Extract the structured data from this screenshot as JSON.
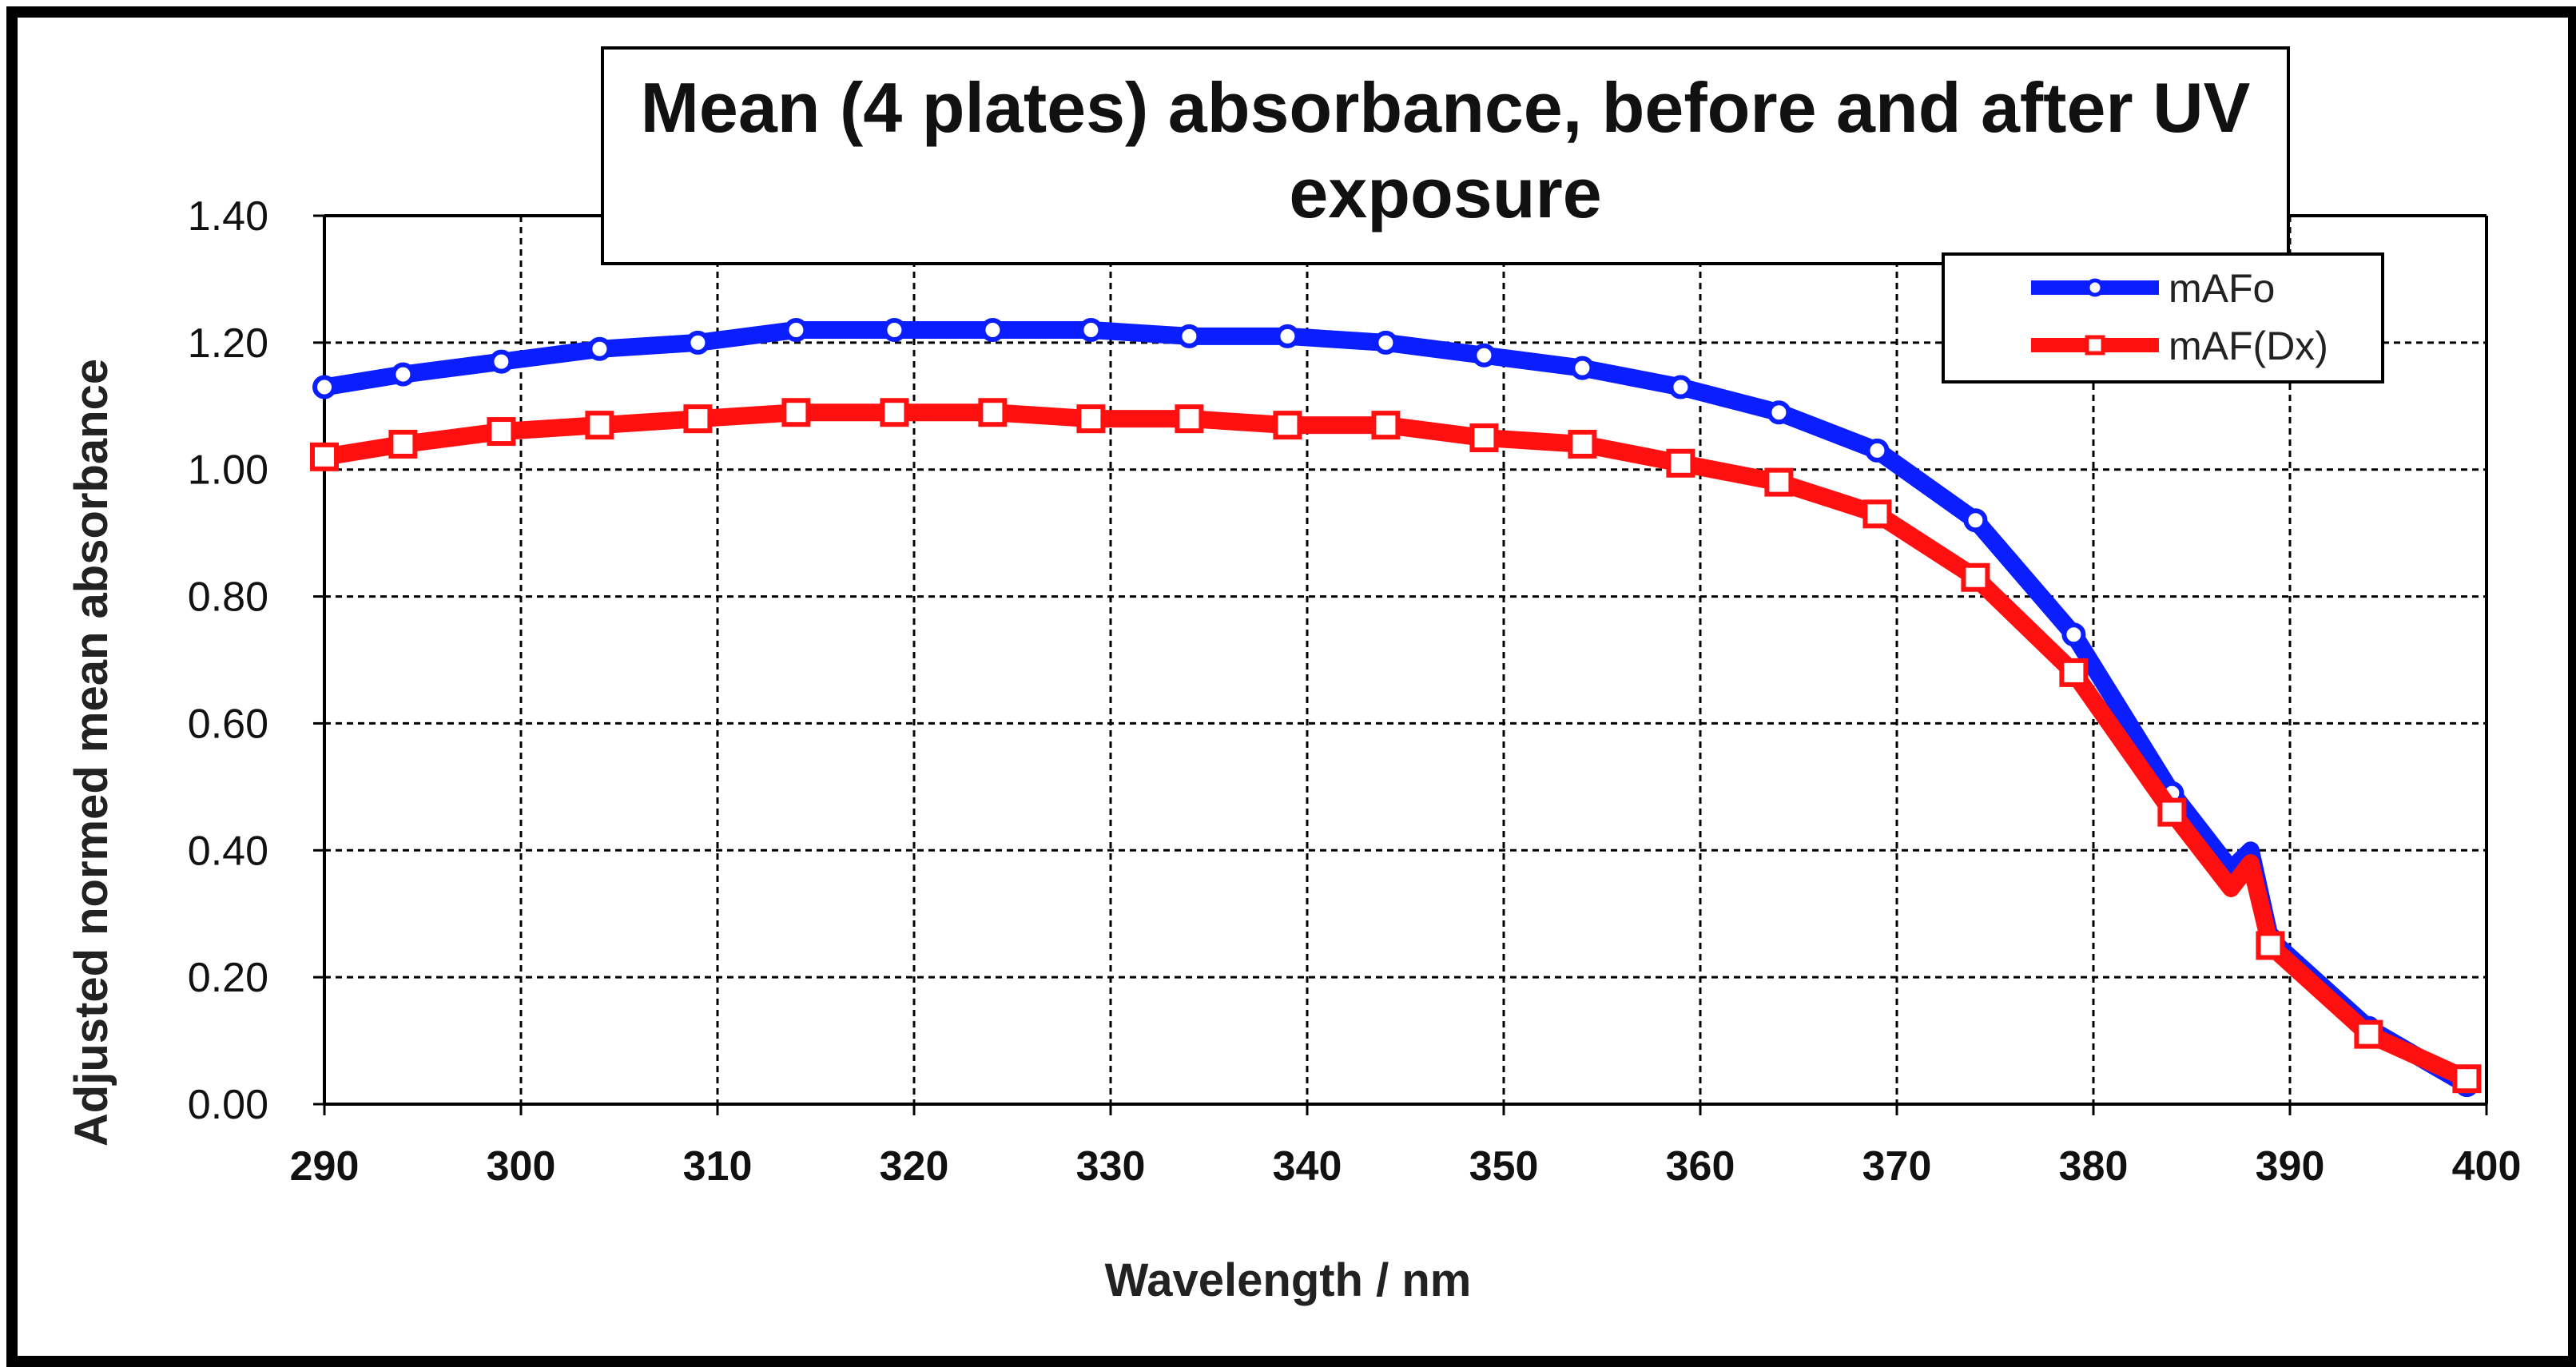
{
  "chart_data": {
    "type": "line",
    "title_lines": [
      "Mean (4 plates) absorbance, before and after UV",
      "exposure"
    ],
    "xlabel": "Wavelength / nm",
    "ylabel": "Adjusted normed mean absorbance",
    "xlim": [
      290,
      400
    ],
    "ylim": [
      0,
      1.4
    ],
    "xticks": [
      "290",
      "300",
      "310",
      "320",
      "330",
      "340",
      "350",
      "360",
      "370",
      "380",
      "390",
      "400"
    ],
    "yticks": [
      "0.00",
      "0.20",
      "0.40",
      "0.60",
      "0.80",
      "1.00",
      "1.20",
      "1.40"
    ],
    "grid": true,
    "legend_position": "top-right",
    "series": [
      {
        "name": "mAFo",
        "color": "#0a1eff",
        "marker": "circle",
        "x": [
          290,
          294,
          299,
          304,
          309,
          314,
          319,
          324,
          329,
          334,
          339,
          344,
          349,
          354,
          359,
          364,
          369,
          374,
          379,
          384,
          387,
          388,
          389,
          394,
          399
        ],
        "values": [
          1.13,
          1.15,
          1.17,
          1.19,
          1.2,
          1.22,
          1.22,
          1.22,
          1.22,
          1.21,
          1.21,
          1.2,
          1.18,
          1.16,
          1.13,
          1.09,
          1.03,
          0.92,
          0.74,
          0.49,
          0.37,
          0.4,
          0.26,
          0.12,
          0.03
        ]
      },
      {
        "name": "mAF(Dx)",
        "color": "#ff1010",
        "marker": "square",
        "x": [
          290,
          294,
          299,
          304,
          309,
          314,
          319,
          324,
          329,
          334,
          339,
          344,
          349,
          354,
          359,
          364,
          369,
          374,
          379,
          384,
          387,
          388,
          389,
          394,
          399
        ],
        "values": [
          1.02,
          1.04,
          1.06,
          1.07,
          1.08,
          1.09,
          1.09,
          1.09,
          1.08,
          1.08,
          1.07,
          1.07,
          1.05,
          1.04,
          1.01,
          0.98,
          0.93,
          0.83,
          0.68,
          0.46,
          0.34,
          0.38,
          0.25,
          0.11,
          0.04
        ]
      }
    ]
  }
}
